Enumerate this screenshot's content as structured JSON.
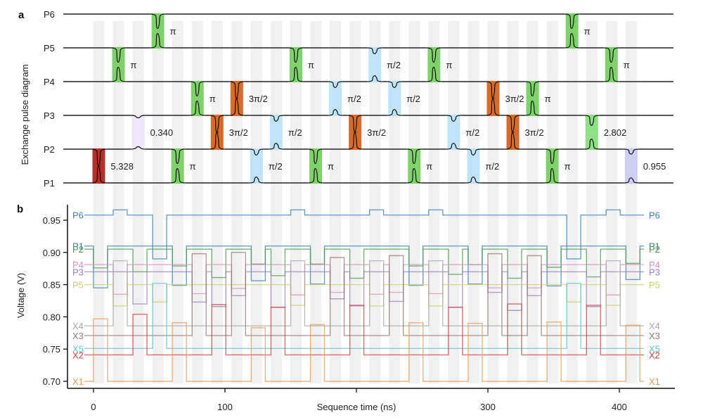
{
  "figure": {
    "panel_a_label": "a",
    "panel_b_label": "b"
  },
  "chart_data": [
    {
      "type": "diagram",
      "panel": "a",
      "title": "",
      "ylabel": "Exchange pulse diagram",
      "wires": [
        "P1",
        "P2",
        "P3",
        "P4",
        "P5",
        "P6"
      ],
      "slot_period_ns": 15,
      "colors": {
        "pi": "#7dd36a",
        "pi_half": "#bfe3f7",
        "three_pi_half": "#d86a2a",
        "red": "#b3302b",
        "lavender": "#efe6fa",
        "periwinkle": "#cfcff5",
        "light_green": "#8fdf86"
      },
      "pulses": [
        {
          "slot": 0,
          "pair": [
            "P1",
            "P2"
          ],
          "label": "5.328",
          "color_key": "red",
          "strength": 0.95
        },
        {
          "slot": 1,
          "pair": [
            "P4",
            "P5"
          ],
          "label": "π",
          "color_key": "pi",
          "strength": 0.85
        },
        {
          "slot": 2,
          "pair": [
            "P2",
            "P3"
          ],
          "label": "0.340",
          "color_key": "lavender",
          "strength": 0.15
        },
        {
          "slot": 3,
          "pair": [
            "P5",
            "P6"
          ],
          "label": "π",
          "color_key": "pi",
          "strength": 0.85
        },
        {
          "slot": 4,
          "pair": [
            "P1",
            "P2"
          ],
          "label": "π",
          "color_key": "pi",
          "strength": 0.85
        },
        {
          "slot": 5,
          "pair": [
            "P3",
            "P4"
          ],
          "label": "π",
          "color_key": "pi",
          "strength": 0.85
        },
        {
          "slot": 6,
          "pair": [
            "P2",
            "P3"
          ],
          "label": "3π/2",
          "color_key": "three_pi_half",
          "strength": 0.95
        },
        {
          "slot": 7,
          "pair": [
            "P3",
            "P4"
          ],
          "label": "3π/2",
          "color_key": "three_pi_half",
          "strength": 0.95
        },
        {
          "slot": 8,
          "pair": [
            "P1",
            "P2"
          ],
          "label": "π/2",
          "color_key": "pi_half",
          "strength": 0.35
        },
        {
          "slot": 9,
          "pair": [
            "P2",
            "P3"
          ],
          "label": "π/2",
          "color_key": "pi_half",
          "strength": 0.35
        },
        {
          "slot": 10,
          "pair": [
            "P4",
            "P5"
          ],
          "label": "π",
          "color_key": "pi",
          "strength": 0.85
        },
        {
          "slot": 11,
          "pair": [
            "P1",
            "P2"
          ],
          "label": "π",
          "color_key": "pi",
          "strength": 0.85
        },
        {
          "slot": 12,
          "pair": [
            "P3",
            "P4"
          ],
          "label": "π/2",
          "color_key": "pi_half",
          "strength": 0.35
        },
        {
          "slot": 13,
          "pair": [
            "P2",
            "P3"
          ],
          "label": "3π/2",
          "color_key": "three_pi_half",
          "strength": 0.95
        },
        {
          "slot": 14,
          "pair": [
            "P4",
            "P5"
          ],
          "label": "π/2",
          "color_key": "pi_half",
          "strength": 0.35
        },
        {
          "slot": 15,
          "pair": [
            "P3",
            "P4"
          ],
          "label": "π/2",
          "color_key": "pi_half",
          "strength": 0.35
        },
        {
          "slot": 16,
          "pair": [
            "P1",
            "P2"
          ],
          "label": "π",
          "color_key": "pi",
          "strength": 0.85
        },
        {
          "slot": 17,
          "pair": [
            "P4",
            "P5"
          ],
          "label": "π",
          "color_key": "pi",
          "strength": 0.85
        },
        {
          "slot": 18,
          "pair": [
            "P2",
            "P3"
          ],
          "label": "π/2",
          "color_key": "pi_half",
          "strength": 0.35
        },
        {
          "slot": 19,
          "pair": [
            "P1",
            "P2"
          ],
          "label": "π/2",
          "color_key": "pi_half",
          "strength": 0.35
        },
        {
          "slot": 20,
          "pair": [
            "P3",
            "P4"
          ],
          "label": "3π/2",
          "color_key": "three_pi_half",
          "strength": 0.95
        },
        {
          "slot": 21,
          "pair": [
            "P2",
            "P3"
          ],
          "label": "3π/2",
          "color_key": "three_pi_half",
          "strength": 0.95
        },
        {
          "slot": 22,
          "pair": [
            "P3",
            "P4"
          ],
          "label": "π",
          "color_key": "pi",
          "strength": 0.85
        },
        {
          "slot": 23,
          "pair": [
            "P1",
            "P2"
          ],
          "label": "π",
          "color_key": "pi",
          "strength": 0.85
        },
        {
          "slot": 24,
          "pair": [
            "P5",
            "P6"
          ],
          "label": "π",
          "color_key": "pi",
          "strength": 0.85
        },
        {
          "slot": 25,
          "pair": [
            "P2",
            "P3"
          ],
          "label": "2.802",
          "color_key": "light_green",
          "strength": 0.6
        },
        {
          "slot": 26,
          "pair": [
            "P4",
            "P5"
          ],
          "label": "π",
          "color_key": "pi",
          "strength": 0.85
        },
        {
          "slot": 27,
          "pair": [
            "P1",
            "P2"
          ],
          "label": "0.955",
          "color_key": "periwinkle",
          "strength": 0.3
        }
      ]
    },
    {
      "type": "line",
      "panel": "b",
      "title": "",
      "xlabel": "Sequence time (ns)",
      "ylabel": "Voltage (V)",
      "xlim": [
        -20,
        440
      ],
      "ylim": [
        0.688,
        0.98
      ],
      "xticks": [
        0,
        100,
        200,
        300,
        400
      ],
      "xtick_labels": [
        "0",
        "100",
        "",
        "300",
        "400"
      ],
      "yticks": [
        0.7,
        0.75,
        0.8,
        0.85,
        0.9,
        0.95
      ],
      "ytick_labels": [
        "0.70",
        "0.75",
        "0.80",
        "0.85",
        "0.90",
        "0.95"
      ],
      "grid": false,
      "legend": "inline-left-and-right",
      "slot_start_ns": 0,
      "slot_period_ns": 15,
      "pulse_width_ns": 8,
      "n_slots": 28,
      "series": [
        {
          "name": "P6",
          "color": "#3f7fb5",
          "baseline": 0.958,
          "side": "P",
          "pulses": {
            "1": 0.966,
            "3": 0.89,
            "10": 0.966,
            "14": 0.966,
            "17": 0.966,
            "24": 0.89,
            "26": 0.966
          }
        },
        {
          "name": "P1",
          "color": "#3f7fb5",
          "baseline": 0.91,
          "side": "P",
          "pulses": {
            "0": 0.845,
            "4": 0.849,
            "8": 0.856,
            "11": 0.851,
            "16": 0.849,
            "19": 0.851,
            "23": 0.848,
            "27": 0.858
          }
        },
        {
          "name": "P2",
          "color": "#4a9a4f",
          "baseline": 0.905,
          "side": "P",
          "pulses": {
            "0": 0.876,
            "2": 0.87,
            "4": 0.879,
            "6": 0.861,
            "8": 0.882,
            "9": 0.864,
            "11": 0.882,
            "13": 0.86,
            "16": 0.879,
            "18": 0.866,
            "19": 0.881,
            "21": 0.86,
            "23": 0.877,
            "25": 0.862,
            "27": 0.883
          }
        },
        {
          "name": "P4",
          "color": "#d88fbf",
          "baseline": 0.881,
          "side": "P",
          "pulses": {
            "1": 0.835,
            "5": 0.836,
            "7": 0.844,
            "10": 0.834,
            "12": 0.838,
            "14": 0.835,
            "15": 0.838,
            "17": 0.836,
            "20": 0.845,
            "22": 0.845,
            "26": 0.834
          }
        },
        {
          "name": "P3",
          "color": "#9b7fc0",
          "baseline": 0.87,
          "side": "P",
          "pulses": {
            "2": 0.82,
            "5": 0.823,
            "6": 0.816,
            "7": 0.833,
            "9": 0.815,
            "12": 0.828,
            "13": 0.817,
            "15": 0.824,
            "18": 0.815,
            "20": 0.838,
            "21": 0.81,
            "22": 0.833,
            "25": 0.816
          }
        },
        {
          "name": "P5",
          "color": "#c9cf6e",
          "baseline": 0.85,
          "side": "P",
          "pulses": {
            "1": 0.817,
            "3": 0.823,
            "10": 0.818,
            "14": 0.817,
            "17": 0.817,
            "24": 0.823,
            "26": 0.818
          }
        },
        {
          "name": "X4",
          "color": "#a8a8a8",
          "baseline": 0.786,
          "side": "X",
          "pulses": {
            "1": 0.887,
            "10": 0.887,
            "14": 0.887,
            "17": 0.887,
            "26": 0.887
          }
        },
        {
          "name": "X3",
          "color": "#9a7a76",
          "baseline": 0.771,
          "side": "X",
          "pulses": {
            "5": 0.898,
            "7": 0.9,
            "12": 0.892,
            "15": 0.895,
            "20": 0.898,
            "22": 0.895
          }
        },
        {
          "name": "X5",
          "color": "#5ec1cf",
          "baseline": 0.751,
          "side": "X",
          "pulses": {
            "3": 0.852,
            "24": 0.852
          }
        },
        {
          "name": "X2",
          "color": "#c9403d",
          "baseline": 0.741,
          "side": "X",
          "pulses": {
            "2": 0.804,
            "6": 0.819,
            "9": 0.815,
            "13": 0.818,
            "18": 0.815,
            "21": 0.82,
            "25": 0.818
          }
        },
        {
          "name": "X1",
          "color": "#e89a55",
          "baseline": 0.7,
          "side": "X",
          "pulses": {
            "0": 0.797,
            "4": 0.791,
            "8": 0.783,
            "11": 0.788,
            "16": 0.791,
            "19": 0.79,
            "23": 0.792,
            "27": 0.787
          }
        }
      ]
    }
  ]
}
